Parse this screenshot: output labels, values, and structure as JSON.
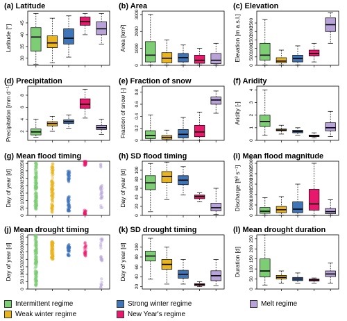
{
  "colors": {
    "Intermittent regime": "#7ccd74",
    "Weak winter regime": "#e8b41f",
    "Strong winter regime": "#3f74b7",
    "New Year's regime": "#e8186d",
    "Melt regime": "#b7a3d8"
  },
  "legend": {
    "items": [
      {
        "label": "Intermittent regime",
        "color": "#7ccd74"
      },
      {
        "label": "Weak winter regime",
        "color": "#e8b41f"
      },
      {
        "label": "Strong winter regime",
        "color": "#3f74b7"
      },
      {
        "label": "New Year's regime",
        "color": "#e8186d"
      },
      {
        "label": "Melt regime",
        "color": "#b7a3d8"
      }
    ]
  },
  "chart_data": [
    {
      "id": "a",
      "type": "box",
      "title": "(a) Latitude",
      "ylabel": "Latitude [°]",
      "ylim": [
        27,
        50
      ],
      "yticks": [
        30,
        35,
        40,
        45
      ],
      "boxes": [
        {
          "min": 27.5,
          "q1": 33,
          "median": 39,
          "q3": 43,
          "max": 49
        },
        {
          "min": 28,
          "q1": 34.5,
          "median": 36.5,
          "q3": 39.5,
          "max": 47
        },
        {
          "min": 30.5,
          "q1": 36,
          "median": 38.5,
          "q3": 42.5,
          "max": 48
        },
        {
          "min": 40,
          "q1": 44,
          "median": 45.5,
          "q3": 47.5,
          "max": 49
        },
        {
          "min": 36,
          "q1": 40,
          "median": 42.5,
          "q3": 45.5,
          "max": 49
        }
      ]
    },
    {
      "id": "b",
      "type": "box",
      "title": "(b) Area",
      "ylabel": "Area [km²]",
      "ylim": [
        0,
        3200
      ],
      "yticks": [
        0,
        1000,
        2000,
        3000
      ],
      "boxes": [
        {
          "min": 20,
          "q1": 200,
          "median": 600,
          "q3": 1400,
          "max": 3000
        },
        {
          "min": 20,
          "q1": 150,
          "median": 420,
          "q3": 750,
          "max": 1500
        },
        {
          "min": 20,
          "q1": 200,
          "median": 450,
          "q3": 700,
          "max": 1200
        },
        {
          "min": 20,
          "q1": 120,
          "median": 300,
          "q3": 600,
          "max": 1000
        },
        {
          "min": 20,
          "q1": 100,
          "median": 300,
          "q3": 700,
          "max": 1300
        }
      ]
    },
    {
      "id": "c",
      "type": "box",
      "title": "(c) Elevation",
      "ylabel": "Elevation [m a.s.l.]",
      "ylim": [
        0,
        3200
      ],
      "yticks": [
        0,
        500,
        1000,
        1500,
        2000,
        2500
      ],
      "boxes": [
        {
          "min": 20,
          "q1": 300,
          "median": 600,
          "q3": 1300,
          "max": 2700
        },
        {
          "min": 20,
          "q1": 150,
          "median": 250,
          "q3": 450,
          "max": 900
        },
        {
          "min": 20,
          "q1": 200,
          "median": 400,
          "q3": 600,
          "max": 1150
        },
        {
          "min": 200,
          "q1": 550,
          "median": 700,
          "q3": 900,
          "max": 1300
        },
        {
          "min": 1300,
          "q1": 2000,
          "median": 2400,
          "q3": 2800,
          "max": 3100
        }
      ]
    },
    {
      "id": "d",
      "type": "box",
      "title": "(d) Precipitation",
      "ylabel": "Precipitation [mm d⁻¹]",
      "ylim": [
        0.5,
        9.5
      ],
      "yticks": [
        2,
        4,
        6,
        8
      ],
      "boxes": [
        {
          "min": 1.0,
          "q1": 1.4,
          "median": 1.9,
          "q3": 2.4,
          "max": 4.0
        },
        {
          "min": 2.0,
          "q1": 2.9,
          "median": 3.3,
          "q3": 3.6,
          "max": 4.5
        },
        {
          "min": 2.5,
          "q1": 3.3,
          "median": 3.6,
          "q3": 3.9,
          "max": 4.7
        },
        {
          "min": 4.2,
          "q1": 5.8,
          "median": 6.5,
          "q3": 7.4,
          "max": 9.0
        },
        {
          "min": 1.5,
          "q1": 2.3,
          "median": 2.6,
          "q3": 3.0,
          "max": 4.0
        }
      ]
    },
    {
      "id": "e",
      "type": "box",
      "title": "(e) Fraction of snow",
      "ylabel": "Fraction of snow [-]",
      "ylim": [
        0,
        0.9
      ],
      "yticks": [
        0.0,
        0.2,
        0.4,
        0.6,
        0.8
      ],
      "boxes": [
        {
          "min": 0.0,
          "q1": 0.03,
          "median": 0.08,
          "q3": 0.16,
          "max": 0.42
        },
        {
          "min": 0.0,
          "q1": 0.02,
          "median": 0.05,
          "q3": 0.08,
          "max": 0.17
        },
        {
          "min": 0.0,
          "q1": 0.04,
          "median": 0.1,
          "q3": 0.18,
          "max": 0.38
        },
        {
          "min": 0.0,
          "q1": 0.06,
          "median": 0.14,
          "q3": 0.25,
          "max": 0.47
        },
        {
          "min": 0.45,
          "q1": 0.6,
          "median": 0.67,
          "q3": 0.72,
          "max": 0.82
        }
      ]
    },
    {
      "id": "f",
      "type": "box",
      "title": "(f) Aridity",
      "ylabel": "Aridity [-]",
      "ylim": [
        0,
        4.3
      ],
      "yticks": [
        0,
        1,
        2,
        3,
        4
      ],
      "boxes": [
        {
          "min": 0.4,
          "q1": 1.1,
          "median": 1.5,
          "q3": 2.0,
          "max": 4.0
        },
        {
          "min": 0.5,
          "q1": 0.75,
          "median": 0.82,
          "q3": 0.9,
          "max": 1.2
        },
        {
          "min": 0.4,
          "q1": 0.6,
          "median": 0.7,
          "q3": 0.8,
          "max": 1.0
        },
        {
          "min": 0.2,
          "q1": 0.3,
          "median": 0.35,
          "q3": 0.42,
          "max": 0.6
        },
        {
          "min": 0.3,
          "q1": 0.75,
          "median": 1.0,
          "q3": 1.4,
          "max": 2.3
        }
      ]
    },
    {
      "id": "g",
      "type": "strip",
      "title": "(g) Mean flood timing",
      "ylabel": "Day of year [d]",
      "ylim": [
        0,
        365
      ],
      "yticks": [
        0,
        50,
        100,
        150,
        200,
        250,
        300,
        350
      ],
      "strips": [
        {
          "ranges": [
            [
              40,
              365
            ]
          ],
          "n": 110
        },
        {
          "ranges": [
            [
              20,
              360
            ]
          ],
          "n": 90
        },
        {
          "ranges": [
            [
              30,
              130
            ],
            [
              225,
              300
            ]
          ],
          "n": 60
        },
        {
          "ranges": [
            [
              5,
              35
            ],
            [
              335,
              365
            ]
          ],
          "n": 35
        },
        {
          "ranges": [
            [
              50,
              70
            ],
            [
              100,
              225
            ],
            [
              320,
              345
            ]
          ],
          "n": 25
        }
      ]
    },
    {
      "id": "h",
      "type": "box",
      "title": "(h) SD flood timing",
      "ylabel": "Day of year [d]",
      "ylim": [
        0,
        120
      ],
      "yticks": [
        0,
        20,
        40,
        60,
        80,
        100
      ],
      "boxes": [
        {
          "min": 8,
          "q1": 57,
          "median": 72,
          "q3": 88,
          "max": 115
        },
        {
          "min": 35,
          "q1": 73,
          "median": 86,
          "q3": 97,
          "max": 118
        },
        {
          "min": 45,
          "q1": 68,
          "median": 78,
          "q3": 88,
          "max": 108
        },
        {
          "min": 30,
          "q1": 37,
          "median": 42,
          "q3": 45,
          "max": 50
        },
        {
          "min": 2,
          "q1": 10,
          "median": 17,
          "q3": 27,
          "max": 60
        }
      ]
    },
    {
      "id": "i",
      "type": "box",
      "title": "(i) Mean flood magnitude",
      "ylabel": "Discharge [ft³ s⁻¹]",
      "ylim": [
        0,
        26000
      ],
      "yticks": [
        0,
        5000,
        10000,
        15000,
        20000,
        25000
      ],
      "boxes": [
        {
          "min": 100,
          "q1": 1000,
          "median": 2000,
          "q3": 3800,
          "max": 8500
        },
        {
          "min": 100,
          "q1": 1300,
          "median": 2700,
          "q3": 4300,
          "max": 9000
        },
        {
          "min": 100,
          "q1": 1300,
          "median": 3000,
          "q3": 6500,
          "max": 15000
        },
        {
          "min": 100,
          "q1": 2500,
          "median": 5500,
          "q3": 12500,
          "max": 25000
        },
        {
          "min": 100,
          "q1": 800,
          "median": 1800,
          "q3": 3300,
          "max": 7500
        }
      ]
    },
    {
      "id": "j",
      "type": "strip",
      "title": "(j) Mean drought timing",
      "ylabel": "Day of year [d]",
      "ylim": [
        0,
        365
      ],
      "yticks": [
        0,
        50,
        100,
        150,
        200,
        250,
        300,
        350
      ],
      "strips": [
        {
          "ranges": [
            [
              20,
              365
            ]
          ],
          "n": 110
        },
        {
          "ranges": [
            [
              200,
              320
            ]
          ],
          "n": 70
        },
        {
          "ranges": [
            [
              220,
              300
            ]
          ],
          "n": 35
        },
        {
          "ranges": [
            [
              220,
              320
            ]
          ],
          "n": 18
        },
        {
          "ranges": [
            [
              10,
              70
            ],
            [
              190,
              340
            ]
          ],
          "n": 25
        }
      ]
    },
    {
      "id": "k",
      "type": "box",
      "title": "(k) SD drought timing",
      "ylabel": "Day of year [d]",
      "ylim": [
        15,
        125
      ],
      "yticks": [
        20,
        40,
        60,
        80,
        100
      ],
      "boxes": [
        {
          "min": 35,
          "q1": 72,
          "median": 82,
          "q3": 92,
          "max": 118
        },
        {
          "min": 25,
          "q1": 55,
          "median": 65,
          "q3": 75,
          "max": 100
        },
        {
          "min": 25,
          "q1": 37,
          "median": 45,
          "q3": 53,
          "max": 75
        },
        {
          "min": 20,
          "q1": 22,
          "median": 24,
          "q3": 26,
          "max": 30
        },
        {
          "min": 22,
          "q1": 32,
          "median": 42,
          "q3": 52,
          "max": 75
        }
      ]
    },
    {
      "id": "l",
      "type": "box",
      "title": "(l) Mean drought duration",
      "ylabel": "Duration [d]",
      "ylim": [
        0,
        270
      ],
      "yticks": [
        0,
        50,
        100,
        150,
        200,
        250
      ],
      "boxes": [
        {
          "min": 20,
          "q1": 60,
          "median": 90,
          "q3": 150,
          "max": 270
        },
        {
          "min": 30,
          "q1": 50,
          "median": 58,
          "q3": 68,
          "max": 90
        },
        {
          "min": 30,
          "q1": 42,
          "median": 50,
          "q3": 58,
          "max": 80
        },
        {
          "min": 30,
          "q1": 40,
          "median": 45,
          "q3": 50,
          "max": 55
        },
        {
          "min": 30,
          "q1": 62,
          "median": 75,
          "q3": 90,
          "max": 130
        }
      ]
    }
  ]
}
